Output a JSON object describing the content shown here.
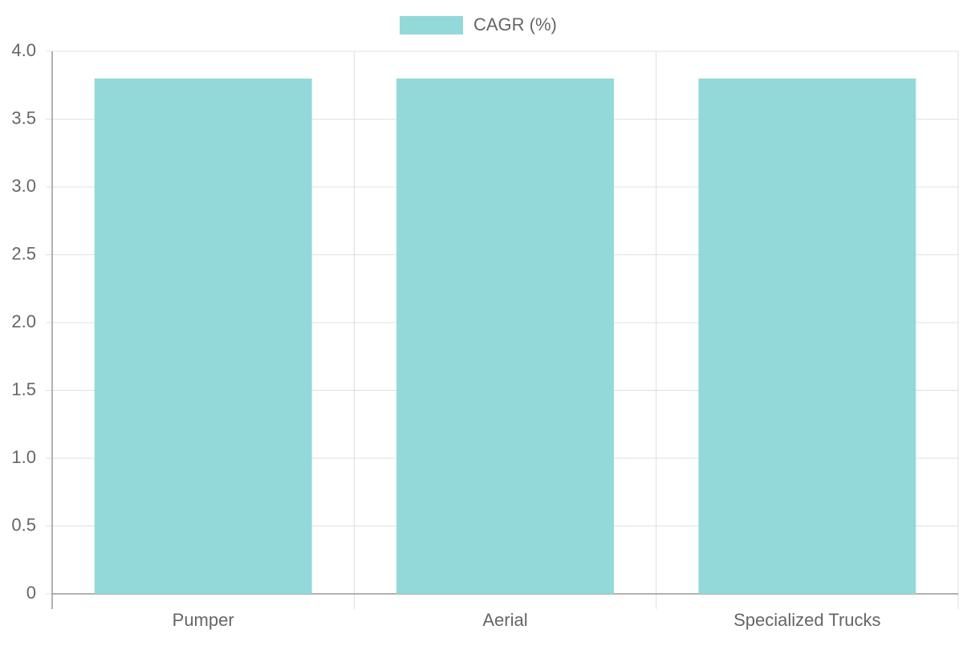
{
  "chart_data": {
    "type": "bar",
    "categories": [
      "Pumper",
      "Aerial",
      "Specialized Trucks"
    ],
    "series": [
      {
        "name": "CAGR (%)",
        "color": "#93d9d9",
        "values": [
          3.8,
          3.8,
          3.8
        ]
      }
    ],
    "ylim": [
      0,
      4
    ],
    "yticks": [
      0,
      0.5,
      {
        "value": 1,
        "label": "1.0"
      },
      1.5,
      {
        "value": 2,
        "label": "2.0"
      },
      2.5,
      {
        "value": 3,
        "label": "3.0"
      },
      3.5,
      {
        "value": 4,
        "label": "4.0"
      }
    ],
    "grid": true,
    "legend": "top"
  }
}
